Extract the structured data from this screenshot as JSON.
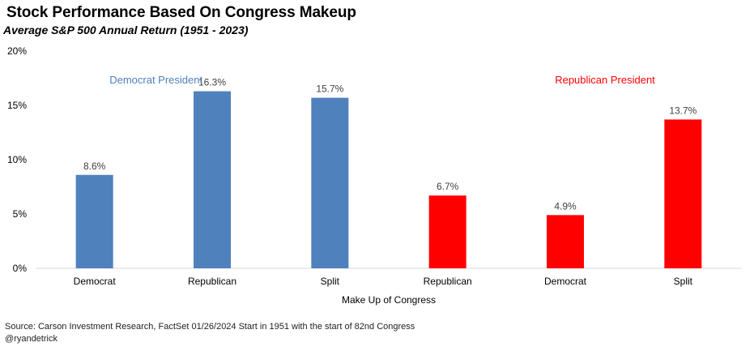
{
  "title": "Stock Performance Based On Congress Makeup",
  "subtitle": "Average S&P 500 Annual Return (1951 - 2023)",
  "footer": {
    "source": "Source: Carson Investment Research, FactSet   01/26/2024   Start in 1951 with the start of 82nd Congress",
    "handle": "@ryandetrick"
  },
  "colors": {
    "democrat": "#4F81BD",
    "republican": "#FF0000",
    "axis": "#D9D9D9",
    "text": "#404040"
  },
  "chart_data": {
    "type": "bar",
    "title": "Stock Performance Based On Congress Makeup",
    "subtitle": "Average S&P 500 Annual Return (1951 - 2023)",
    "xlabel": "Make Up of Congress",
    "ylabel": "",
    "ylim": [
      0,
      20
    ],
    "yticks": [
      "0%",
      "5%",
      "10%",
      "15%",
      "20%"
    ],
    "grid": false,
    "group_labels": [
      {
        "label": "Democrat President",
        "color": "#4F81BD"
      },
      {
        "label": "Republican President",
        "color": "#FF0000"
      }
    ],
    "categories": [
      "Democrat",
      "Republican",
      "Split",
      "Republican",
      "Democrat",
      "Split"
    ],
    "values": [
      8.6,
      16.3,
      15.7,
      6.7,
      4.9,
      13.7
    ],
    "data_labels": [
      "8.6%",
      "16.3%",
      "15.7%",
      "6.7%",
      "4.9%",
      "13.7%"
    ],
    "bar_groups": [
      0,
      0,
      0,
      1,
      1,
      1
    ]
  }
}
